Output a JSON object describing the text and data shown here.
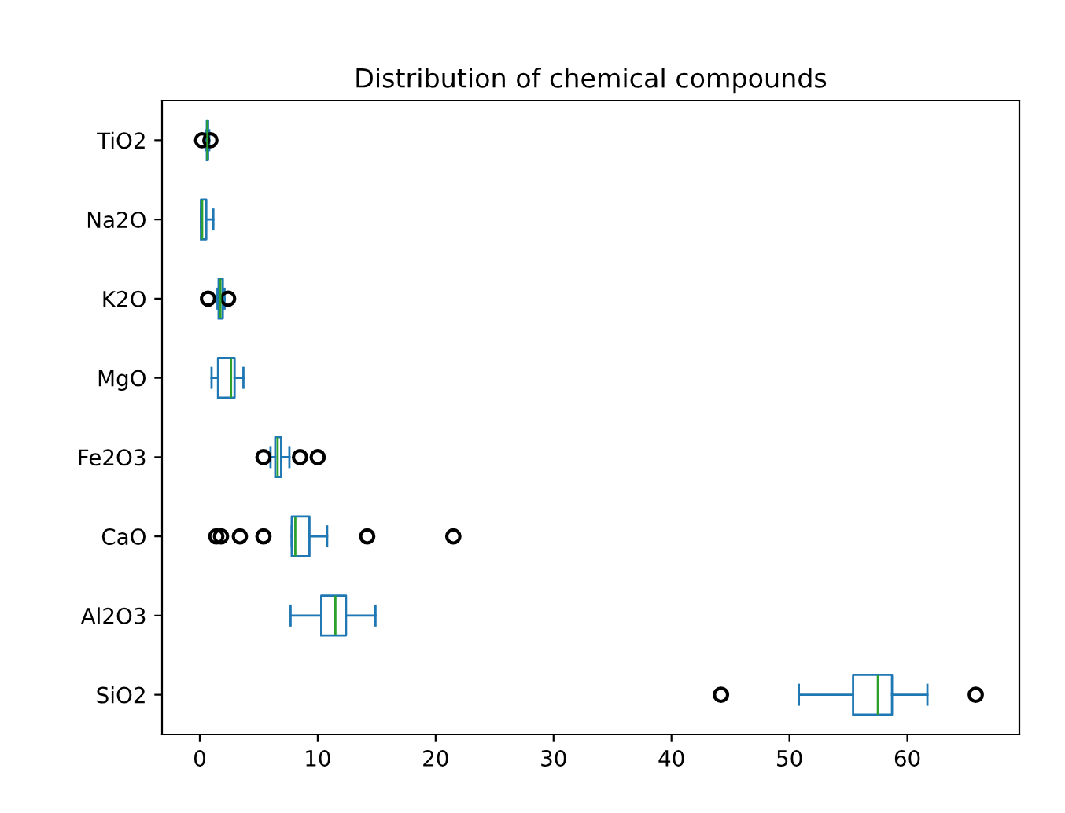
{
  "chart_data": {
    "type": "box",
    "title": "Distribution of chemical compounds",
    "orientation": "horizontal",
    "categories": [
      "TiO2",
      "Na2O",
      "K2O",
      "MgO",
      "Fe2O3",
      "CaO",
      "Al2O3",
      "SiO2"
    ],
    "boxes": [
      {
        "low": 0.5,
        "q1": 0.6,
        "median": 0.65,
        "q3": 0.7,
        "high": 0.8,
        "outliers": [
          0.2,
          0.9
        ]
      },
      {
        "low": 0.1,
        "q1": 0.1,
        "median": 0.2,
        "q3": 0.55,
        "high": 1.15
      },
      {
        "low": 1.5,
        "q1": 1.6,
        "median": 1.75,
        "q3": 1.95,
        "high": 2.1,
        "outliers": [
          0.7,
          2.4
        ]
      },
      {
        "low": 1.0,
        "q1": 1.55,
        "median": 2.65,
        "q3": 2.95,
        "high": 3.7
      },
      {
        "low": 6.0,
        "q1": 6.4,
        "median": 6.6,
        "q3": 6.9,
        "high": 7.6,
        "outliers": [
          5.4,
          8.5,
          10.0
        ]
      },
      {
        "low": 7.8,
        "q1": 7.8,
        "median": 8.1,
        "q3": 9.3,
        "high": 10.8,
        "outliers": [
          1.4,
          1.8,
          3.4,
          5.4,
          14.2,
          21.5
        ]
      },
      {
        "low": 7.7,
        "q1": 10.3,
        "median": 11.5,
        "q3": 12.4,
        "high": 14.9
      },
      {
        "low": 50.8,
        "q1": 55.4,
        "median": 57.5,
        "q3": 58.7,
        "high": 61.7,
        "outliers": [
          44.2,
          65.8
        ]
      }
    ],
    "color": "#1f77b4",
    "xlim": [
      -3.2,
      69.5
    ],
    "xticks": [
      0,
      10,
      20,
      30,
      40,
      50,
      60
    ],
    "grid": false,
    "legend": false
  }
}
